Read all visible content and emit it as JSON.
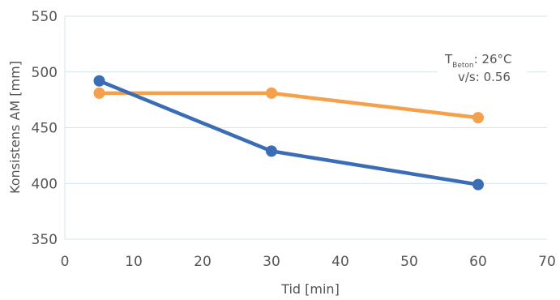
{
  "chart_data": {
    "type": "line",
    "title": "",
    "xlabel": "Tid [min]",
    "ylabel": "Konsistens AM [mm]",
    "xlim": [
      0,
      70
    ],
    "ylim": [
      350,
      550
    ],
    "xticks": [
      0,
      10,
      20,
      30,
      40,
      50,
      60,
      70
    ],
    "yticks": [
      350,
      400,
      450,
      500,
      550
    ],
    "grid": "horizontal",
    "series": [
      {
        "color": "#f5a04a",
        "x": [
          5,
          30,
          60
        ],
        "y": [
          481,
          481,
          459
        ]
      },
      {
        "color": "#3a6db5",
        "x": [
          5,
          30,
          60
        ],
        "y": [
          492,
          429,
          399
        ]
      }
    ],
    "annotation": {
      "line1_main": "T",
      "line1_sub": "Beton",
      "line1_rest": ": 26°C",
      "line2": "v/s: 0.56"
    },
    "colors": {
      "grid": "#d5e3ea",
      "text": "#555555"
    }
  }
}
